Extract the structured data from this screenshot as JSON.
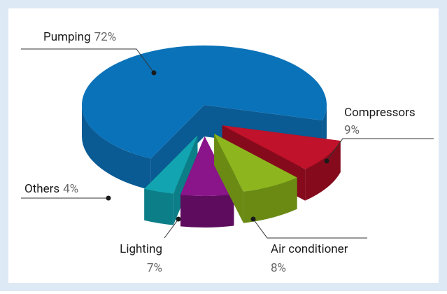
{
  "chart_data": {
    "type": "pie3d",
    "categories": [
      "Pumping",
      "Compressors",
      "Air conditioner",
      "Lighting",
      "Others"
    ],
    "values": [
      72,
      9,
      8,
      7,
      4
    ],
    "value_labels": [
      "72%",
      "9%",
      "8%",
      "7%",
      "4%"
    ],
    "colors": [
      "#0a72b8",
      "#c0122a",
      "#8db51e",
      "#8a148a",
      "#12a4b0"
    ],
    "side_colors": [
      "#0a5a94",
      "#850b1c",
      "#6a8a14",
      "#5e0d5e",
      "#0c7e87"
    ]
  }
}
